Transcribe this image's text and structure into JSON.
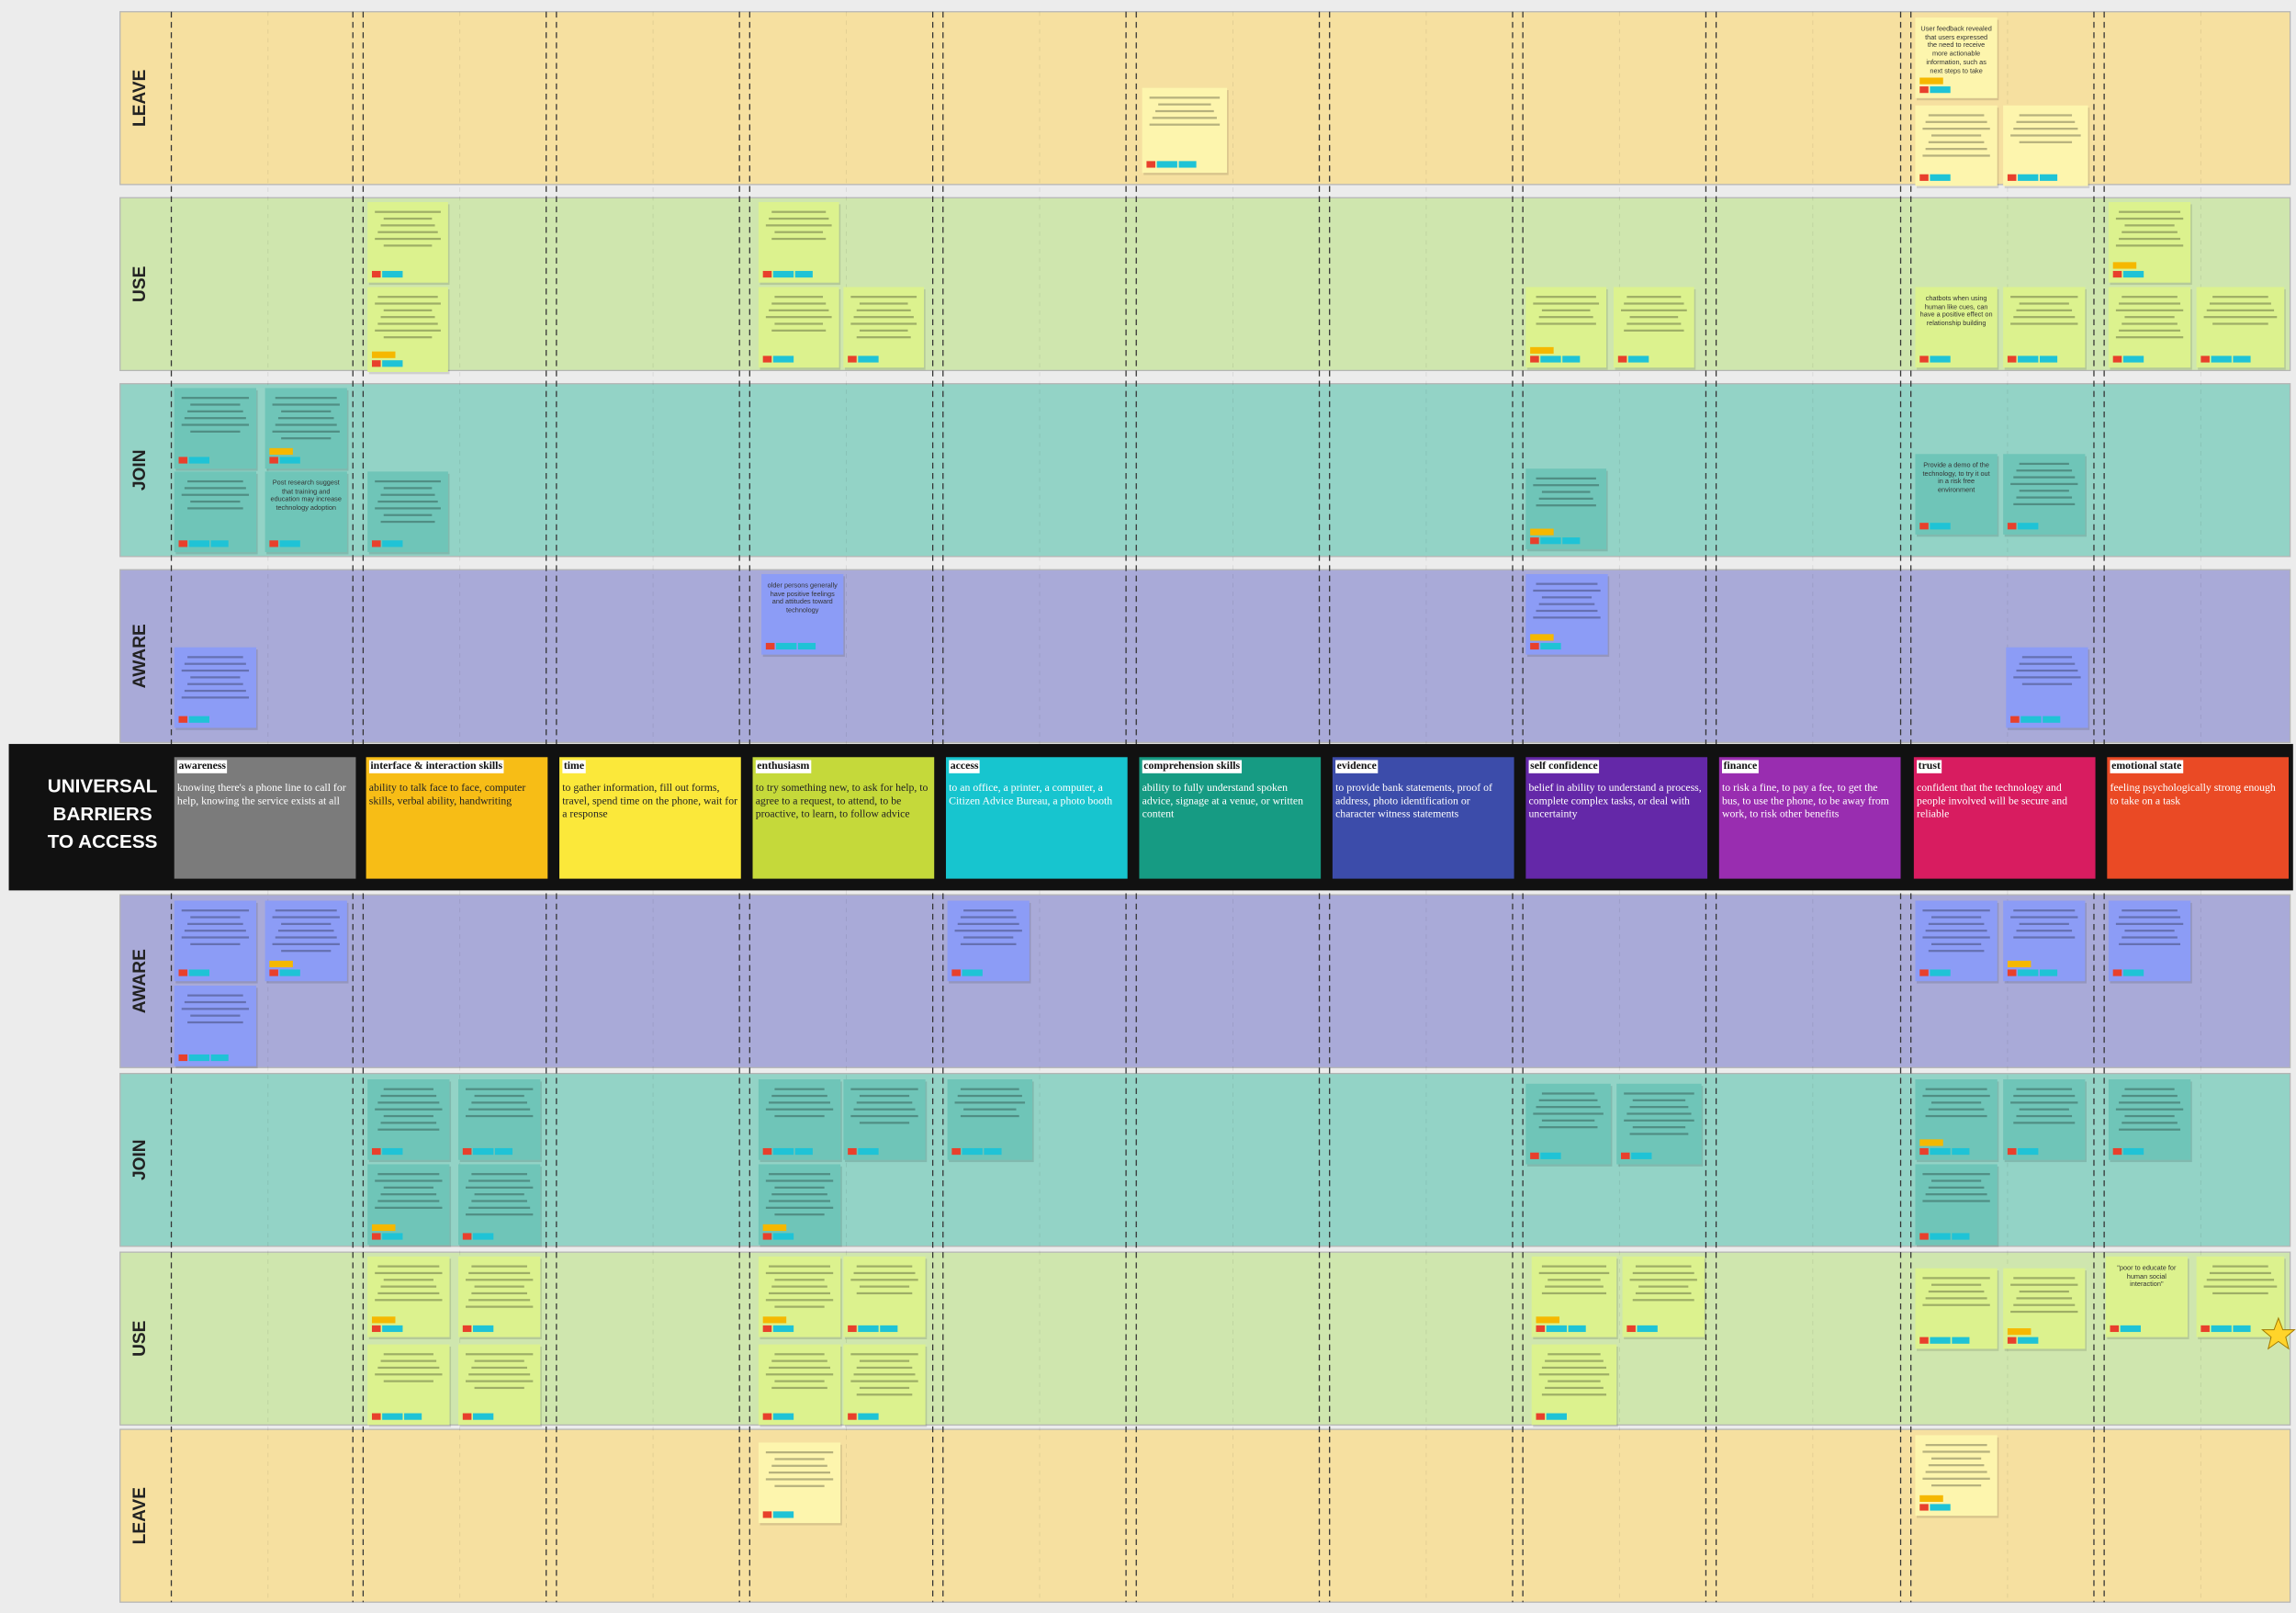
{
  "board": {
    "title_lines": [
      "UNIVERSAL",
      "BARRIERS",
      "TO ACCESS"
    ],
    "upper_lanes": [
      "LEAVE",
      "USE",
      "JOIN",
      "AWARE"
    ],
    "lower_lanes": [
      "AWARE",
      "JOIN",
      "USE",
      "LEAVE"
    ],
    "barriers": [
      {
        "name": "awareness",
        "description": "knowing there's a phone line to call for help, knowing the service exists at all"
      },
      {
        "name": "interface & interaction skills",
        "description": "ability to talk face to face, computer skills, verbal ability, handwriting"
      },
      {
        "name": "time",
        "description": "to gather information, fill out forms, travel, spend time on the phone, wait for a response"
      },
      {
        "name": "enthusiasm",
        "description": "to try something new, to ask for help, to agree to a request, to attend, to be proactive, to learn, to follow advice"
      },
      {
        "name": "access",
        "description": "to an office, a printer, a computer, a Citizen Advice Bureau, a photo booth"
      },
      {
        "name": "comprehension skills",
        "description": "ability to fully understand spoken advice, signage at a venue, or written content"
      },
      {
        "name": "evidence",
        "description": "to provide bank statements, proof of address, photo identification or character witness statements"
      },
      {
        "name": "self confidence",
        "description": "belief in ability to understand a process, complete complex tasks, or deal with uncertainty"
      },
      {
        "name": "finance",
        "description": "to risk a fine, to pay a fee, to get the bus, to use the phone, to be away from work, to risk other benefits"
      },
      {
        "name": "trust",
        "description": "confident that the technology and people involved will be secure and reliable"
      },
      {
        "name": "emotional state",
        "description": "feeling psychologically strong enough to take on a task"
      }
    ],
    "notes": [
      {
        "text": "User feedback revealed that users expressed the need to receive more actionable information, such as next steps to take"
      },
      {
        "text": "chatbots when using human like cues, can have a positive effect on relationship building"
      },
      {
        "text": "Post research suggest that training and education may increase technology adoption"
      },
      {
        "text": "Provide a demo of the technology, to try it out in a risk free environment"
      },
      {
        "text": "older persons generally have positive feelings and attitudes toward technology"
      },
      {
        "text": "\"poor to educate for human social interaction\""
      }
    ]
  }
}
